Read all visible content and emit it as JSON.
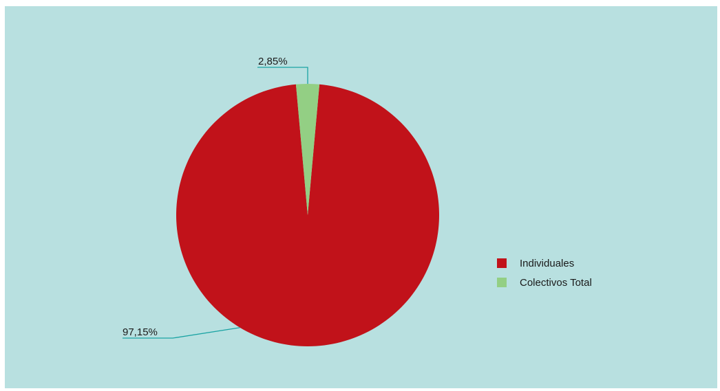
{
  "chart_data": {
    "type": "pie",
    "title": "",
    "slices": [
      {
        "label": "Individuales",
        "value": 97.15,
        "display": "97,15%",
        "color": "#c1121a"
      },
      {
        "label": "Colectivos Total",
        "value": 2.85,
        "display": "2,85%",
        "color": "#93cf84"
      }
    ],
    "legend_position": "right",
    "leader_line_color": "#1aa3a3",
    "background_color": "#b8e0e0"
  }
}
